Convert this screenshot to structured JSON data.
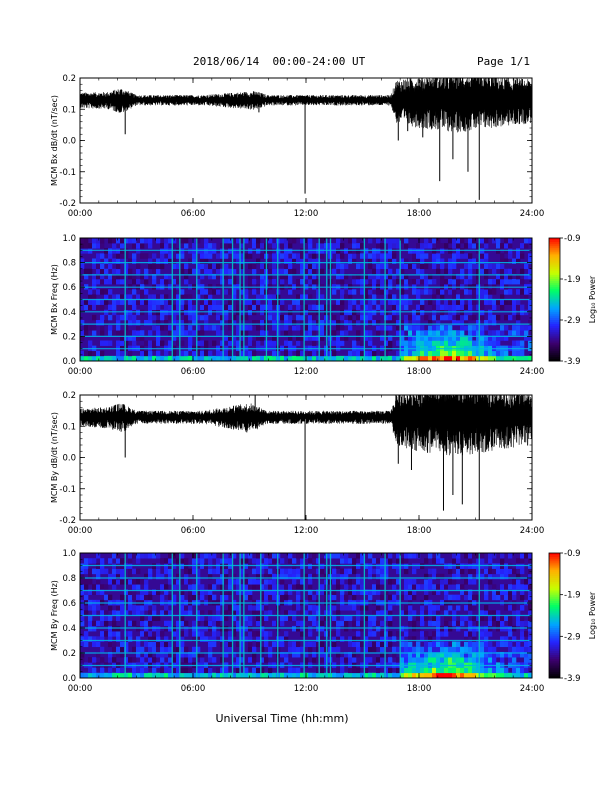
{
  "header": {
    "date_range": "2018/06/14  00:00-24:00 UT",
    "page": "Page 1/1"
  },
  "footer": {
    "xlabel": "Universal Time (hh:mm)"
  },
  "colors": {
    "trace": "#000000",
    "frame": "#000000",
    "colorbar_stops": [
      "#000000",
      "#3b006e",
      "#2424ff",
      "#00a6ff",
      "#00ff66",
      "#c8ff00",
      "#ffb000",
      "#ff0000"
    ]
  },
  "chart_data": [
    {
      "type": "line",
      "ylabel": "MCM Bx dB/dt (nT/sec)",
      "xlim": [
        0,
        24
      ],
      "x_ticks": [
        "00:00",
        "06:00",
        "12:00",
        "18:00",
        "24:00"
      ],
      "ylim": [
        -0.2,
        0.2
      ],
      "y_ticks": [
        "0.2",
        "0.1",
        "0.0",
        "-0.1",
        "-0.2"
      ],
      "series": [
        {
          "baseline": 0.13,
          "noise_profile": [
            [
              0,
              0.018
            ],
            [
              1.5,
              0.02
            ],
            [
              2.2,
              0.03
            ],
            [
              3,
              0.012
            ],
            [
              6.5,
              0.012
            ],
            [
              9.3,
              0.022
            ],
            [
              10,
              0.012
            ],
            [
              16.5,
              0.012
            ],
            [
              16.8,
              0.05
            ],
            [
              18,
              0.06
            ],
            [
              20,
              0.07
            ],
            [
              24,
              0.05
            ]
          ],
          "spikes": [
            [
              2.4,
              0.02
            ],
            [
              9.5,
              0.09
            ],
            [
              11.95,
              -0.17
            ],
            [
              16.9,
              0.0
            ],
            [
              17.4,
              0.03
            ],
            [
              18.2,
              0.01
            ],
            [
              19.1,
              -0.13
            ],
            [
              19.8,
              -0.06
            ],
            [
              20.6,
              -0.1
            ],
            [
              21.2,
              -0.19
            ]
          ]
        }
      ]
    },
    {
      "type": "heatmap",
      "ylabel": "MCM Bx Freq (Hz)",
      "xlim": [
        0,
        24
      ],
      "x_ticks": [
        "00:00",
        "06:00",
        "12:00",
        "18:00",
        "24:00"
      ],
      "ylim": [
        0.0,
        1.0
      ],
      "y_ticks": [
        "1.0",
        "0.8",
        "0.6",
        "0.4",
        "0.2",
        "0.0"
      ],
      "colorbar": {
        "label": "Log₁₀ Power",
        "range": [
          -3.9,
          -0.9
        ],
        "ticks": [
          "-0.9",
          "-1.9",
          "-2.9",
          "-3.9"
        ]
      },
      "harmonic_lines_hz": [
        0.1,
        0.2,
        0.3,
        0.4,
        0.5,
        0.6,
        0.7,
        0.8,
        0.9
      ],
      "impulsive_events_hours": [
        2.4,
        4.9,
        5.3,
        6.2,
        7.6,
        8.1,
        8.5,
        8.7,
        9.9,
        10.5,
        11.9,
        12.7,
        13.1,
        13.3,
        15.1,
        16.2,
        17.0,
        21.2
      ],
      "low_freq_enhancement": {
        "start_hour": 17.0,
        "end_hour": 24.0,
        "max_freq_hz": 0.3
      }
    },
    {
      "type": "line",
      "ylabel": "MCM By dB/dt (nT/sec)",
      "xlim": [
        0,
        24
      ],
      "x_ticks": [
        "00:00",
        "06:00",
        "12:00",
        "18:00",
        "24:00"
      ],
      "ylim": [
        -0.2,
        0.2
      ],
      "y_ticks": [
        "0.2",
        "0.1",
        "0.0",
        "-0.1",
        "-0.2"
      ],
      "series": [
        {
          "baseline": 0.13,
          "noise_profile": [
            [
              0,
              0.02
            ],
            [
              1.5,
              0.025
            ],
            [
              2.2,
              0.035
            ],
            [
              3,
              0.015
            ],
            [
              6.5,
              0.015
            ],
            [
              9.0,
              0.035
            ],
            [
              10,
              0.015
            ],
            [
              16.5,
              0.015
            ],
            [
              16.8,
              0.06
            ],
            [
              18,
              0.075
            ],
            [
              20,
              0.085
            ],
            [
              24,
              0.06
            ]
          ],
          "spikes": [
            [
              2.4,
              0.0
            ],
            [
              9.3,
              0.2
            ],
            [
              11.95,
              -0.2
            ],
            [
              16.9,
              -0.02
            ],
            [
              17.6,
              -0.04
            ],
            [
              19.3,
              -0.17
            ],
            [
              19.8,
              -0.12
            ],
            [
              20.3,
              -0.15
            ],
            [
              21.2,
              -0.2
            ]
          ]
        }
      ]
    },
    {
      "type": "heatmap",
      "ylabel": "MCM By Freq (Hz)",
      "xlim": [
        0,
        24
      ],
      "x_ticks": [
        "00:00",
        "06:00",
        "12:00",
        "18:00",
        "24:00"
      ],
      "ylim": [
        0.0,
        1.0
      ],
      "y_ticks": [
        "1.0",
        "0.8",
        "0.6",
        "0.4",
        "0.2",
        "0.0"
      ],
      "colorbar": {
        "label": "Log₁₀ Power",
        "range": [
          -3.9,
          -0.9
        ],
        "ticks": [
          "-0.9",
          "-1.9",
          "-2.9",
          "-3.9"
        ]
      },
      "harmonic_lines_hz": [
        0.1,
        0.2,
        0.3,
        0.4,
        0.5,
        0.6,
        0.7,
        0.8,
        0.9
      ],
      "impulsive_events_hours": [
        2.4,
        4.9,
        5.3,
        6.2,
        7.6,
        8.1,
        8.5,
        8.7,
        9.6,
        10.5,
        11.9,
        12.7,
        13.1,
        13.3,
        15.1,
        16.2,
        17.0,
        21.2
      ],
      "low_freq_enhancement": {
        "start_hour": 17.0,
        "end_hour": 24.0,
        "max_freq_hz": 0.3
      }
    }
  ]
}
